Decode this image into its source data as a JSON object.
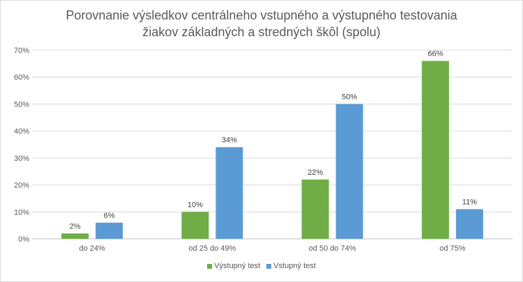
{
  "chart_data": {
    "type": "bar",
    "title_line1": "Porovnanie výsledkov centrálneho vstupného a výstupného testovania",
    "title_line2": "žiakov základných a stredných škôl (spolu)",
    "categories": [
      "do 24%",
      "od 25 do 49%",
      "od 50 do 74%",
      "od 75%"
    ],
    "series": [
      {
        "name": "Výstupný test",
        "color": "#70ad47",
        "values": [
          2,
          10,
          22,
          66
        ],
        "labels": [
          "2%",
          "10%",
          "22%",
          "66%"
        ]
      },
      {
        "name": "Vstupný test",
        "color": "#5b9bd5",
        "values": [
          6,
          34,
          50,
          11
        ],
        "labels": [
          "6%",
          "34%",
          "50%",
          "11%"
        ]
      }
    ],
    "ylim": [
      0,
      70
    ],
    "yticks": [
      "0%",
      "10%",
      "20%",
      "30%",
      "40%",
      "50%",
      "60%",
      "70%"
    ],
    "grid": true,
    "legend_position": "bottom"
  }
}
